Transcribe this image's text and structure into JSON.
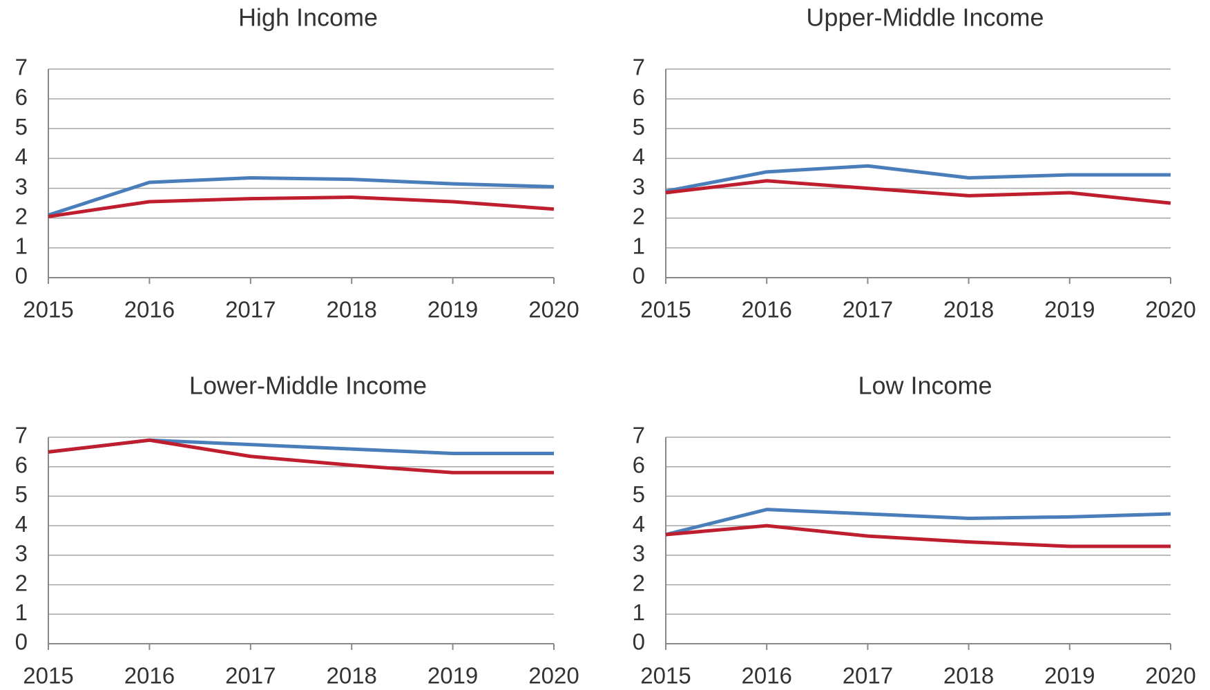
{
  "chart_data": [
    {
      "type": "line",
      "title": "High Income",
      "x": [
        2015,
        2016,
        2017,
        2018,
        2019,
        2020
      ],
      "xlim": [
        2015,
        2020
      ],
      "xticks": [
        2015,
        2016,
        2017,
        2018,
        2019,
        2020
      ],
      "ylim": [
        0,
        7
      ],
      "yticks": [
        0,
        1,
        2,
        3,
        4,
        5,
        6,
        7
      ],
      "grid": true,
      "series": [
        {
          "color": "#4a7ebb",
          "values": [
            2.1,
            3.2,
            3.35,
            3.3,
            3.15,
            3.05
          ]
        },
        {
          "color": "#be1e2d",
          "values": [
            2.05,
            2.55,
            2.65,
            2.7,
            2.55,
            2.3
          ]
        }
      ]
    },
    {
      "type": "line",
      "title": "Upper-Middle Income",
      "x": [
        2015,
        2016,
        2017,
        2018,
        2019,
        2020
      ],
      "xlim": [
        2015,
        2020
      ],
      "xticks": [
        2015,
        2016,
        2017,
        2018,
        2019,
        2020
      ],
      "ylim": [
        0,
        7
      ],
      "yticks": [
        0,
        1,
        2,
        3,
        4,
        5,
        6,
        7
      ],
      "grid": true,
      "series": [
        {
          "color": "#4a7ebb",
          "values": [
            2.9,
            3.55,
            3.75,
            3.35,
            3.45,
            3.45
          ]
        },
        {
          "color": "#be1e2d",
          "values": [
            2.85,
            3.25,
            3.0,
            2.75,
            2.85,
            2.5
          ]
        }
      ]
    },
    {
      "type": "line",
      "title": "Lower-Middle Income",
      "x": [
        2015,
        2016,
        2017,
        2018,
        2019,
        2020
      ],
      "xlim": [
        2015,
        2020
      ],
      "xticks": [
        2015,
        2016,
        2017,
        2018,
        2019,
        2020
      ],
      "ylim": [
        0,
        7
      ],
      "yticks": [
        0,
        1,
        2,
        3,
        4,
        5,
        6,
        7
      ],
      "grid": true,
      "series": [
        {
          "color": "#4a7ebb",
          "values": [
            6.5,
            6.9,
            6.75,
            6.6,
            6.45,
            6.45
          ]
        },
        {
          "color": "#be1e2d",
          "values": [
            6.5,
            6.9,
            6.35,
            6.05,
            5.8,
            5.8
          ]
        }
      ]
    },
    {
      "type": "line",
      "title": "Low Income",
      "x": [
        2015,
        2016,
        2017,
        2018,
        2019,
        2020
      ],
      "xlim": [
        2015,
        2020
      ],
      "xticks": [
        2015,
        2016,
        2017,
        2018,
        2019,
        2020
      ],
      "ylim": [
        0,
        7
      ],
      "yticks": [
        0,
        1,
        2,
        3,
        4,
        5,
        6,
        7
      ],
      "grid": true,
      "series": [
        {
          "color": "#4a7ebb",
          "values": [
            3.7,
            4.55,
            4.4,
            4.25,
            4.3,
            4.4
          ]
        },
        {
          "color": "#be1e2d",
          "values": [
            3.7,
            4.0,
            3.65,
            3.45,
            3.3,
            3.3
          ]
        }
      ]
    }
  ]
}
